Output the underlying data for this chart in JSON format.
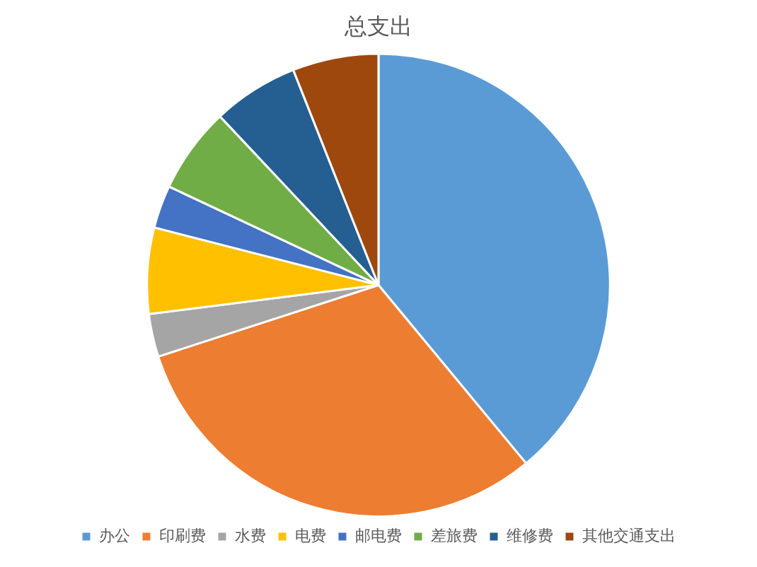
{
  "chart_data": {
    "type": "pie",
    "title": "总支出",
    "categories": [
      "办公",
      "印刷费",
      "水费",
      "电费",
      "邮电费",
      "差旅费",
      "维修费",
      "其他交通支出"
    ],
    "values": [
      39,
      31,
      3,
      6,
      3,
      6,
      6,
      6
    ],
    "colors": [
      "#5b9bd5",
      "#ed7d31",
      "#a5a5a5",
      "#ffc000",
      "#4472c4",
      "#70ad47",
      "#255e91",
      "#9e480e"
    ],
    "legend": "bottom"
  }
}
